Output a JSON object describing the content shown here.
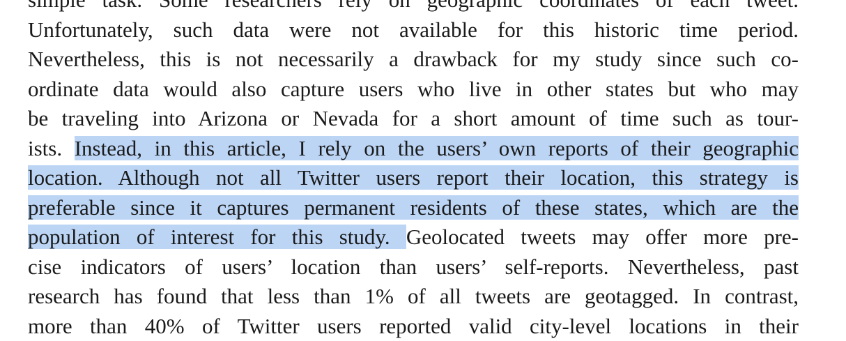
{
  "document": {
    "lines": [
      {
        "segments": [
          {
            "text": "simple task. Some researchers rely on geographic coordinates of each tweet.",
            "highlight": false
          }
        ]
      },
      {
        "segments": [
          {
            "text": "Unfortunately, such data were not available for this historic time period.",
            "highlight": false
          }
        ]
      },
      {
        "segments": [
          {
            "text": "Nevertheless, this is not necessarily a drawback for my study since such co-",
            "highlight": false
          }
        ]
      },
      {
        "segments": [
          {
            "text": "ordinate data would also capture users who live in other states but who may",
            "highlight": false
          }
        ]
      },
      {
        "segments": [
          {
            "text": "be traveling into Arizona or Nevada for a short amount of time such as tour-",
            "highlight": false
          }
        ]
      },
      {
        "segments": [
          {
            "text": "ists. ",
            "highlight": false
          },
          {
            "text": "Instead, in this article, I rely on the users’ own reports of their geographic",
            "highlight": true
          }
        ]
      },
      {
        "segments": [
          {
            "text": "location. Although not all Twitter users report their location, this strategy is",
            "highlight": true
          }
        ]
      },
      {
        "segments": [
          {
            "text": "preferable since it captures permanent residents of these states, which are the",
            "highlight": true
          }
        ]
      },
      {
        "segments": [
          {
            "text": "population of interest for this study. ",
            "highlight": true
          },
          {
            "text": "Geolocated tweets may offer more pre-",
            "highlight": false
          }
        ]
      },
      {
        "segments": [
          {
            "text": "cise indicators of users’ location than users’ self-reports. Nevertheless, past",
            "highlight": false
          }
        ]
      },
      {
        "segments": [
          {
            "text": "research has found that less than 1% of all tweets are geotagged. In contrast,",
            "highlight": false
          }
        ]
      },
      {
        "segments": [
          {
            "text": "more than 40% of Twitter users reported valid city-level locations in their",
            "highlight": false
          }
        ]
      }
    ]
  },
  "colors": {
    "highlight": "#bcd5f5",
    "text": "#1a1a1a",
    "background": "#ffffff"
  }
}
